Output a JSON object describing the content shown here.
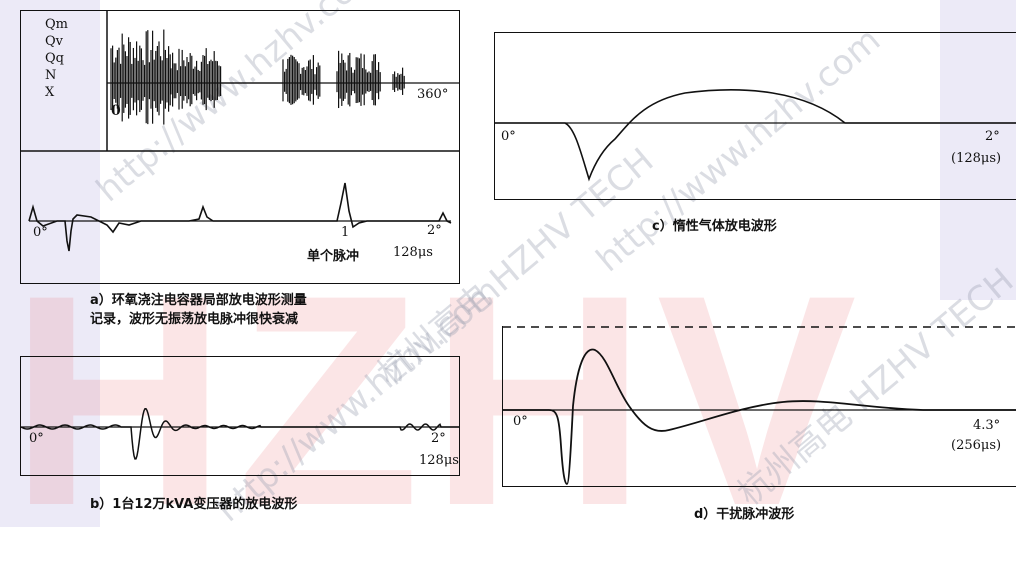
{
  "watermark": {
    "brand_letters": "HZHV",
    "lines": [
      "杭州高电 HZHV TECH",
      "http://www.hzhv.com"
    ]
  },
  "panel_a": {
    "channels": [
      "Qm",
      "Qv",
      "Qq",
      "N",
      "X"
    ],
    "top_start": "0",
    "top_end": "360°",
    "bottom_start": "0°",
    "bottom_marker": "1",
    "bottom_end": "2°",
    "single_pulse": "单个脉冲",
    "time": "128μs",
    "caption_line1": "a）环氧浇注电容器局部放电波形测量",
    "caption_line2": "记录，波形无振荡放电脉冲很快衰减"
  },
  "panel_b": {
    "start": "0°",
    "end": "2°",
    "time": "128μs",
    "caption": "b）1台12万kVA变压器的放电波形"
  },
  "panel_c": {
    "start": "0°",
    "end": "2°",
    "time": "(128μs)",
    "caption": "c）惰性气体放电波形"
  },
  "panel_d": {
    "start": "0°",
    "end": "4.3°",
    "time": "(256μs)",
    "caption": "d）干扰脉冲波形"
  }
}
